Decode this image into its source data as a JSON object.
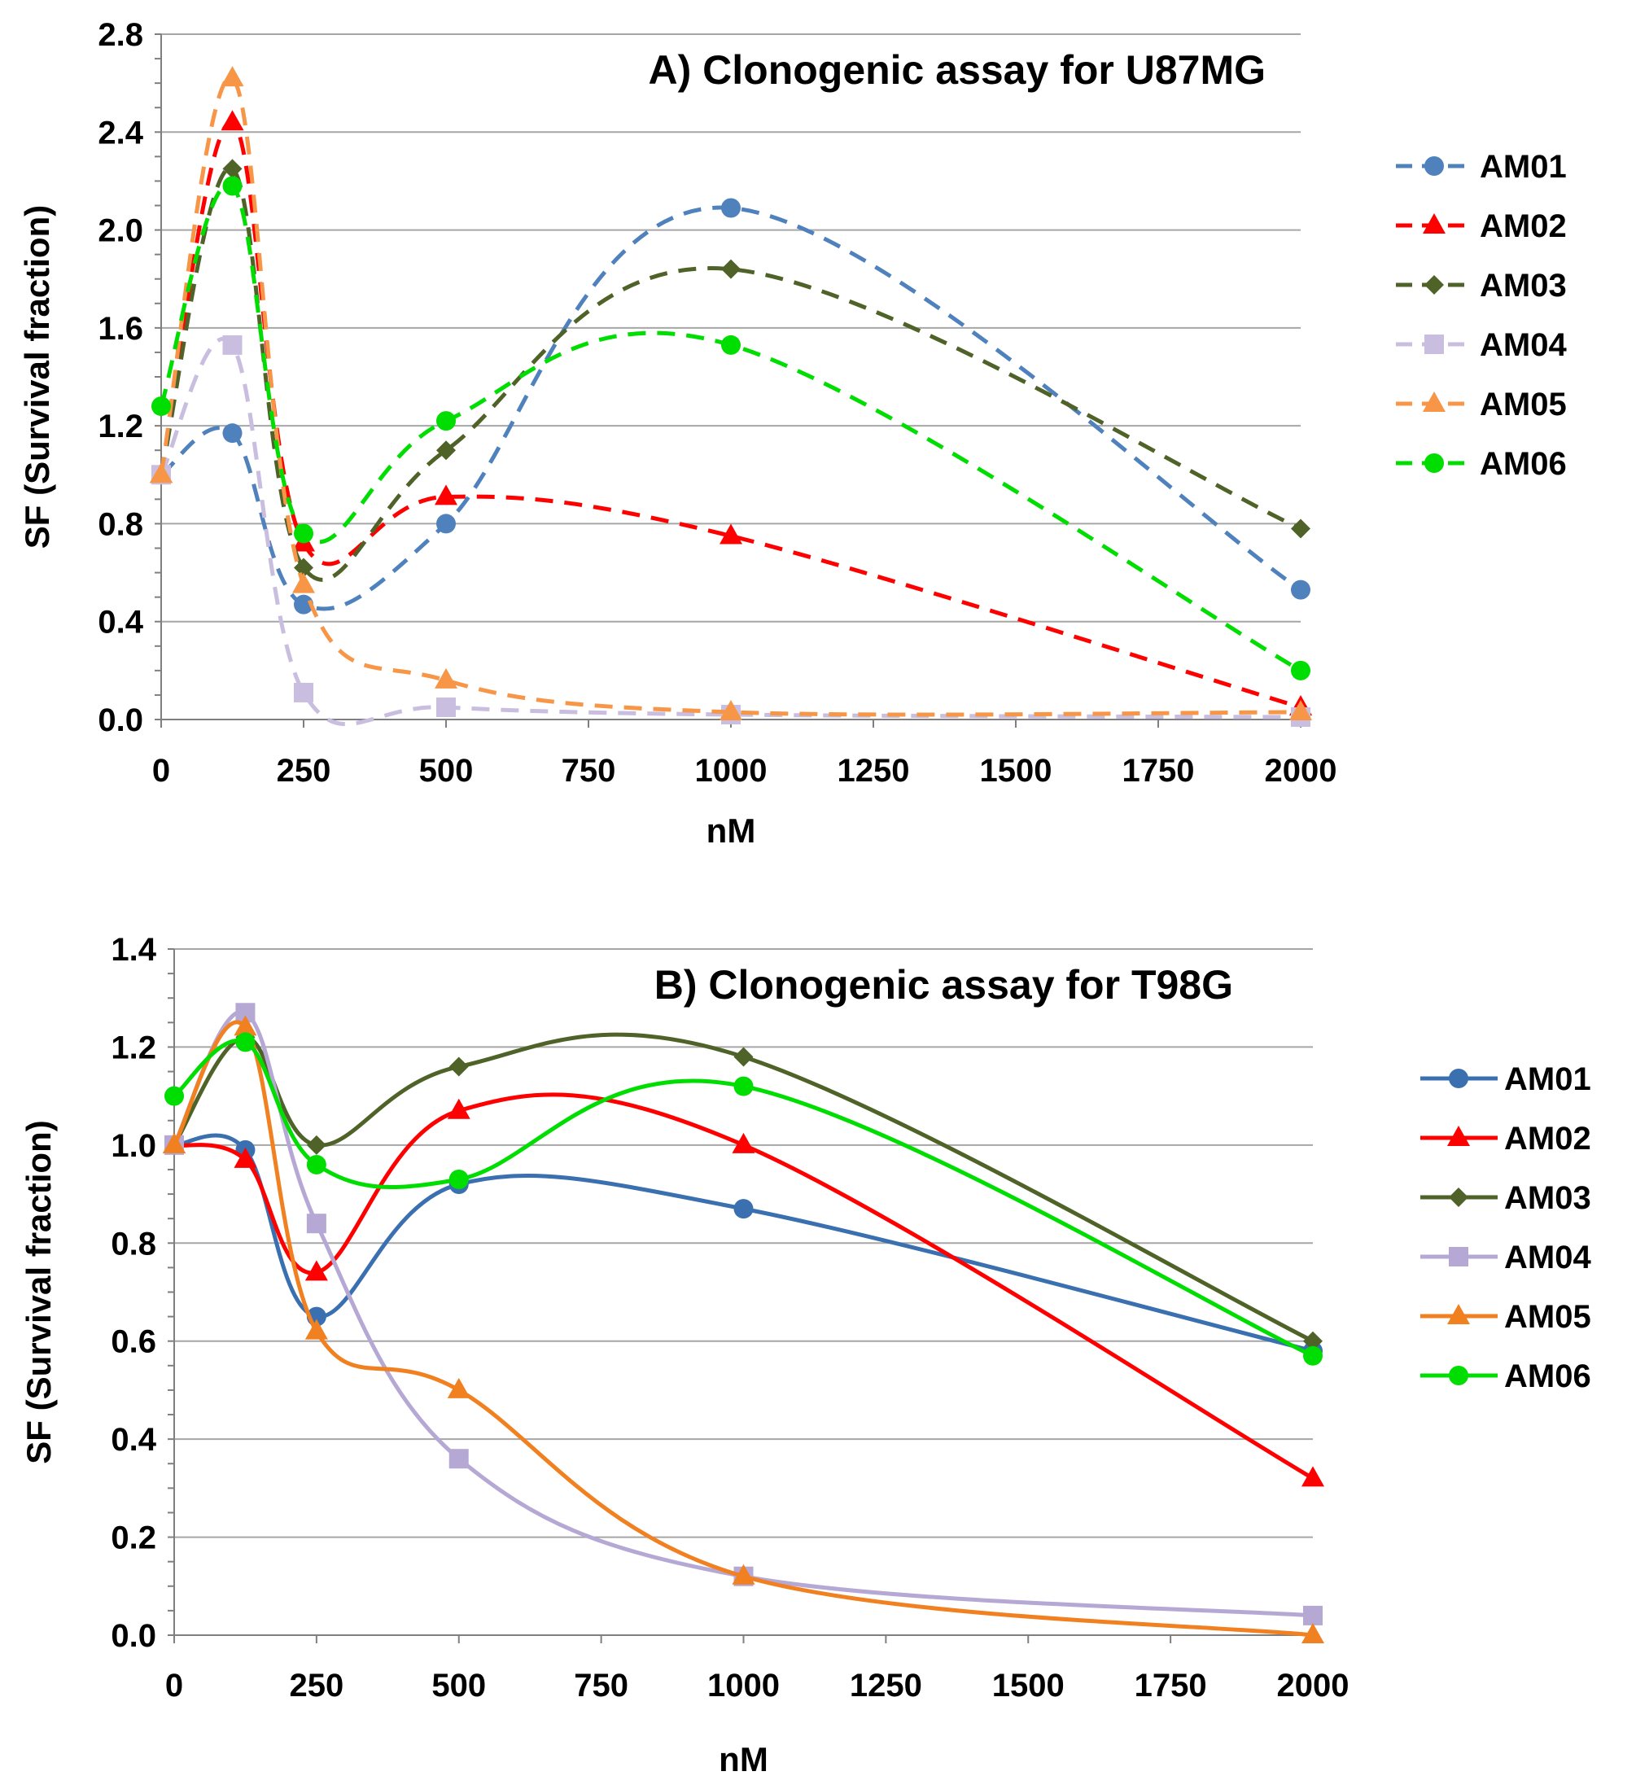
{
  "chart_data": [
    {
      "type": "line",
      "title": "A) Clonogenic assay for U87MG",
      "xlabel": "nM",
      "ylabel": "SF (Survival fraction)",
      "line_style": "dashed",
      "smooth": true,
      "x_scale": "categorical",
      "x": [
        0,
        100,
        250,
        500,
        1000,
        2000
      ],
      "x_tick_labels": [
        "0",
        "250",
        "500",
        "750",
        "1000",
        "1250",
        "1500",
        "1750",
        "2000"
      ],
      "y_tick_labels": [
        "0.0",
        "0.4",
        "0.8",
        "1.2",
        "1.6",
        "2.0",
        "2.4",
        "2.8"
      ],
      "ylim": [
        0,
        2.8
      ],
      "grid": true,
      "legend_position": "right",
      "series": [
        {
          "name": "AM01",
          "color": "#4f81bd",
          "marker": "circle",
          "values": [
            1.0,
            1.17,
            0.47,
            0.8,
            2.09,
            0.53
          ]
        },
        {
          "name": "AM02",
          "color": "#ff0000",
          "marker": "triangle",
          "values": [
            1.0,
            2.44,
            0.72,
            0.91,
            0.75,
            0.05
          ]
        },
        {
          "name": "AM03",
          "color": "#4f6228",
          "marker": "diamond",
          "values": [
            1.0,
            2.25,
            0.62,
            1.1,
            1.84,
            0.78
          ]
        },
        {
          "name": "AM04",
          "color": "#c9bde0",
          "marker": "square",
          "values": [
            1.0,
            1.53,
            0.11,
            0.05,
            0.02,
            0.01
          ]
        },
        {
          "name": "AM05",
          "color": "#f79646",
          "marker": "triangle",
          "values": [
            1.0,
            2.62,
            0.55,
            0.16,
            0.03,
            0.03
          ]
        },
        {
          "name": "AM06",
          "color": "#00dd00",
          "marker": "circle",
          "values": [
            1.28,
            2.18,
            0.76,
            1.22,
            1.53,
            0.2
          ]
        }
      ]
    },
    {
      "type": "line",
      "title": "B) Clonogenic assay for T98G",
      "xlabel": "nM",
      "ylabel": "SF (Survival fraction)",
      "line_style": "solid",
      "smooth": true,
      "x_scale": "categorical",
      "x": [
        0,
        100,
        250,
        500,
        1000,
        2000
      ],
      "x_tick_labels": [
        "0",
        "250",
        "500",
        "750",
        "1000",
        "1250",
        "1500",
        "1750",
        "2000"
      ],
      "y_tick_labels": [
        "0.0",
        "0.2",
        "0.4",
        "0.6",
        "0.8",
        "1.0",
        "1.2",
        "1.4"
      ],
      "ylim": [
        0,
        1.4
      ],
      "grid": true,
      "legend_position": "right",
      "series": [
        {
          "name": "AM01",
          "color": "#3a6fb0",
          "marker": "circle",
          "values": [
            1.0,
            0.99,
            0.65,
            0.92,
            0.87,
            0.58
          ]
        },
        {
          "name": "AM02",
          "color": "#ff0000",
          "marker": "triangle",
          "values": [
            1.0,
            0.97,
            0.74,
            1.07,
            1.0,
            0.32
          ]
        },
        {
          "name": "AM03",
          "color": "#4f6228",
          "marker": "diamond",
          "values": [
            1.0,
            1.22,
            1.0,
            1.16,
            1.18,
            0.6
          ]
        },
        {
          "name": "AM04",
          "color": "#b6a8d4",
          "marker": "square",
          "values": [
            1.0,
            1.27,
            0.84,
            0.36,
            0.12,
            0.04
          ]
        },
        {
          "name": "AM05",
          "color": "#f08020",
          "marker": "triangle",
          "values": [
            1.0,
            1.24,
            0.62,
            0.5,
            0.12,
            0.0
          ]
        },
        {
          "name": "AM06",
          "color": "#00dd00",
          "marker": "circle",
          "values": [
            1.1,
            1.21,
            0.96,
            0.93,
            1.12,
            0.57
          ]
        }
      ]
    }
  ]
}
